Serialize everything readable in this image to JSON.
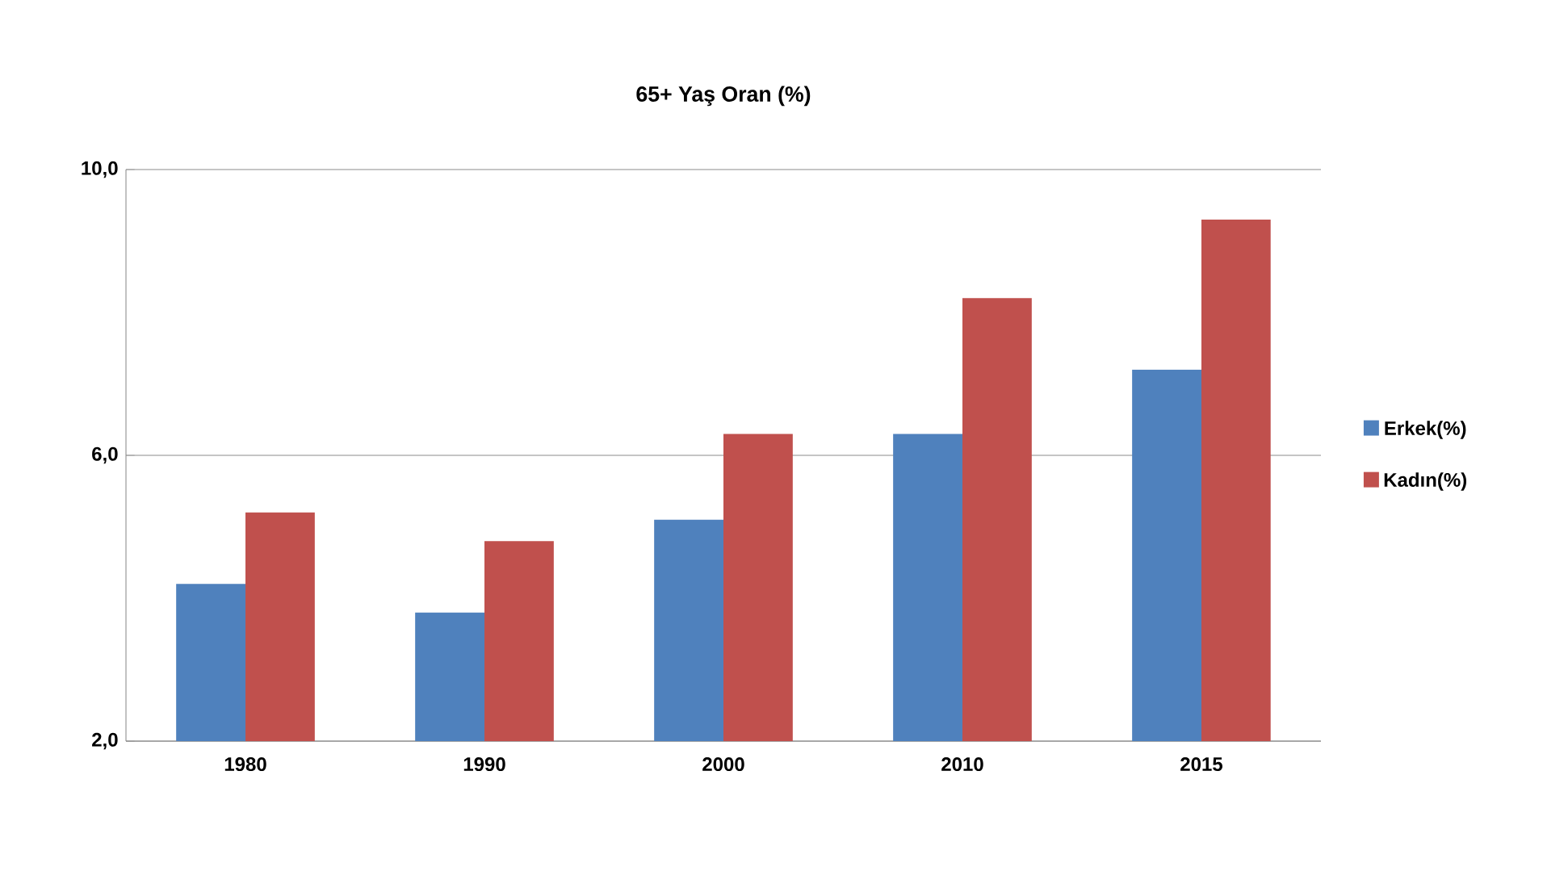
{
  "chart_data": {
    "type": "bar",
    "title": "65+  Yaş Oran (%)",
    "categories": [
      "1980",
      "1990",
      "2000",
      "2010",
      "2015"
    ],
    "series": [
      {
        "name": "Erkek(%)",
        "color": "#4f81bd",
        "values": [
          4.2,
          3.8,
          5.1,
          6.3,
          7.2
        ]
      },
      {
        "name": "Kadın(%)",
        "color": "#c0504d",
        "values": [
          5.2,
          4.8,
          6.3,
          8.2,
          9.3
        ]
      }
    ],
    "ylim": [
      2,
      10
    ],
    "yticks": [
      {
        "value": 2,
        "label": "2,0"
      },
      {
        "value": 6,
        "label": "6,0"
      },
      {
        "value": 10,
        "label": "10,0"
      }
    ],
    "grid": "y",
    "legend": "right"
  }
}
